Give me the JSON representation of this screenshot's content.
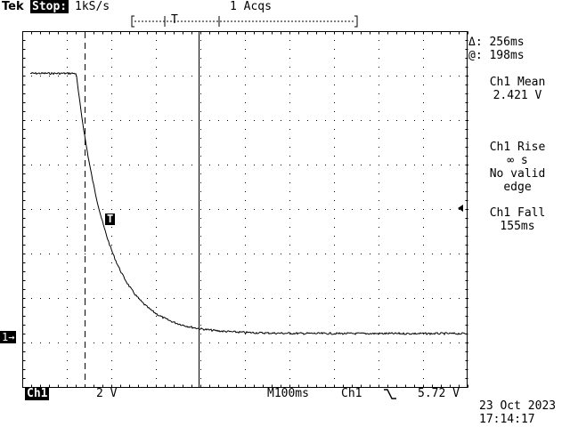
{
  "header": {
    "brand": "Tek",
    "run_state": "Stop:",
    "sample_rate": "1kS/s",
    "acquisitions": "1 Acqs",
    "record_trigger_marker": "T"
  },
  "cursor_readout": {
    "delta": "Δ: 256ms",
    "at": "@: 198ms"
  },
  "measurements": [
    {
      "label": "Ch1 Mean",
      "value": "2.421 V"
    },
    {
      "label": "Ch1 Rise",
      "value": "∞ s",
      "note1": "No valid",
      "note2": "edge"
    },
    {
      "label": "Ch1 Fall",
      "value": "155ms"
    }
  ],
  "trigger_marker_label": "T",
  "channel_marker": "1→",
  "footer": {
    "channel": "Ch1",
    "volts_per_div": "2 V",
    "timebase": "M100ms",
    "trigger_source": "Ch1",
    "trigger_slope_icon": "falling-edge-icon",
    "trigger_level": "5.72 V",
    "date": "23 Oct 2023",
    "time": "17:14:17"
  },
  "waveform": {
    "units_x": "ms",
    "units_y": "V",
    "high_level_v": 11.9,
    "low_level_v": 0.2,
    "fall_start_ms": 120,
    "time_constant_ms": 70,
    "end_ms": 1000
  }
}
